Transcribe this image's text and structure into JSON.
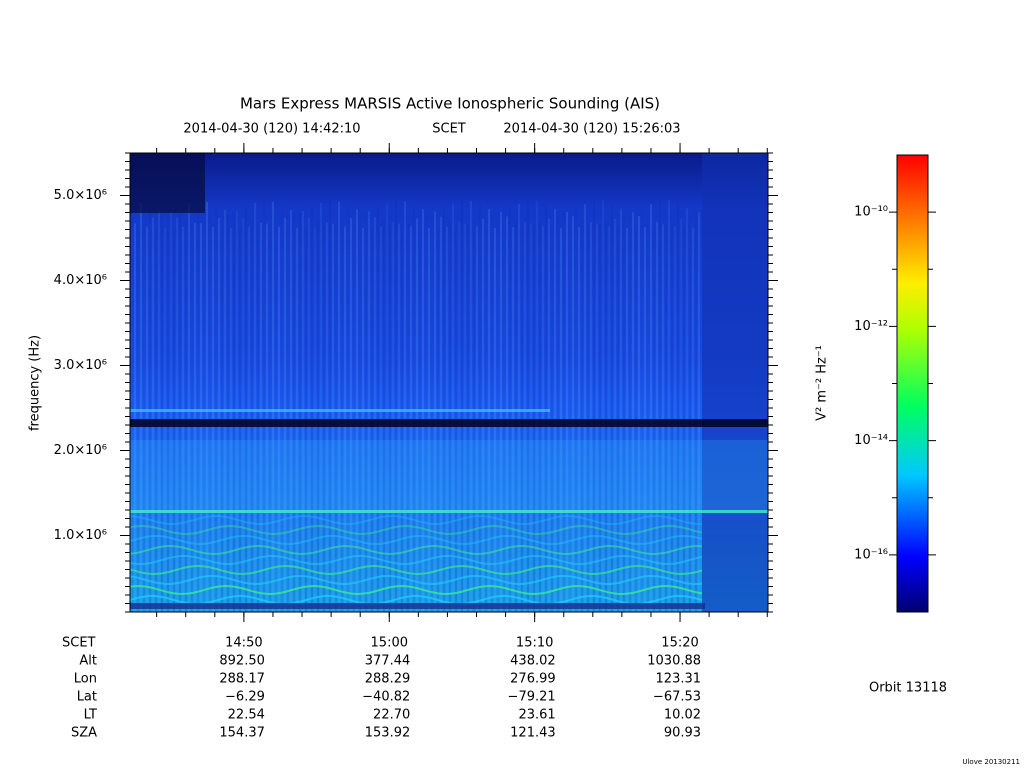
{
  "chart_data": {
    "type": "spectrogram",
    "title": "Mars Express MARSIS Active Ionospheric Sounding (AIS)",
    "subtitle": {
      "start": "2014-04-30 (120) 14:42:10",
      "frame": "SCET",
      "end": "2014-04-30 (120) 15:26:03"
    },
    "y_label": "frequency (Hz)",
    "xlim": [
      "14:42:10",
      "15:26:03"
    ],
    "xticks": [
      "14:50",
      "15:00",
      "15:10",
      "15:20"
    ],
    "ylim": [
      100000,
      5500000
    ],
    "yticks": [
      {
        "value": 1000000,
        "label": "1.0×10⁶"
      },
      {
        "value": 2000000,
        "label": "2.0×10⁶"
      },
      {
        "value": 3000000,
        "label": "3.0×10⁶"
      },
      {
        "value": 4000000,
        "label": "4.0×10⁶"
      },
      {
        "value": 5000000,
        "label": "5.0×10⁶"
      }
    ],
    "colorbar": {
      "label": "V² m⁻² Hz⁻¹",
      "log_scale": true,
      "zlim": [
        1e-17,
        1e-09
      ],
      "zticks": [
        {
          "value": 1e-16,
          "label": "10⁻¹⁶"
        },
        {
          "value": 1e-14,
          "label": "10⁻¹⁴"
        },
        {
          "value": 1e-12,
          "label": "10⁻¹²"
        },
        {
          "value": 1e-10,
          "label": "10⁻¹⁰"
        }
      ],
      "zminor": [
        1e-15,
        1e-13,
        1e-11
      ]
    },
    "ephemeris": {
      "time_label": "SCET",
      "rows": [
        {
          "label": "Alt",
          "values": [
            "892.50",
            "377.44",
            "438.02",
            "1030.88"
          ]
        },
        {
          "label": "Lon",
          "values": [
            "288.17",
            "288.29",
            "276.99",
            "123.31"
          ]
        },
        {
          "label": "Lat",
          "values": [
            "−6.29",
            "−40.82",
            "−79.21",
            "−67.53"
          ]
        },
        {
          "label": "LT",
          "values": [
            "22.54",
            "22.70",
            "23.61",
            "10.02"
          ]
        },
        {
          "label": "SZA",
          "values": [
            "154.37",
            "153.92",
            "121.43",
            "90.93"
          ]
        }
      ]
    },
    "orbit": "Orbit 13118",
    "footer": "Ulove 20130211"
  }
}
